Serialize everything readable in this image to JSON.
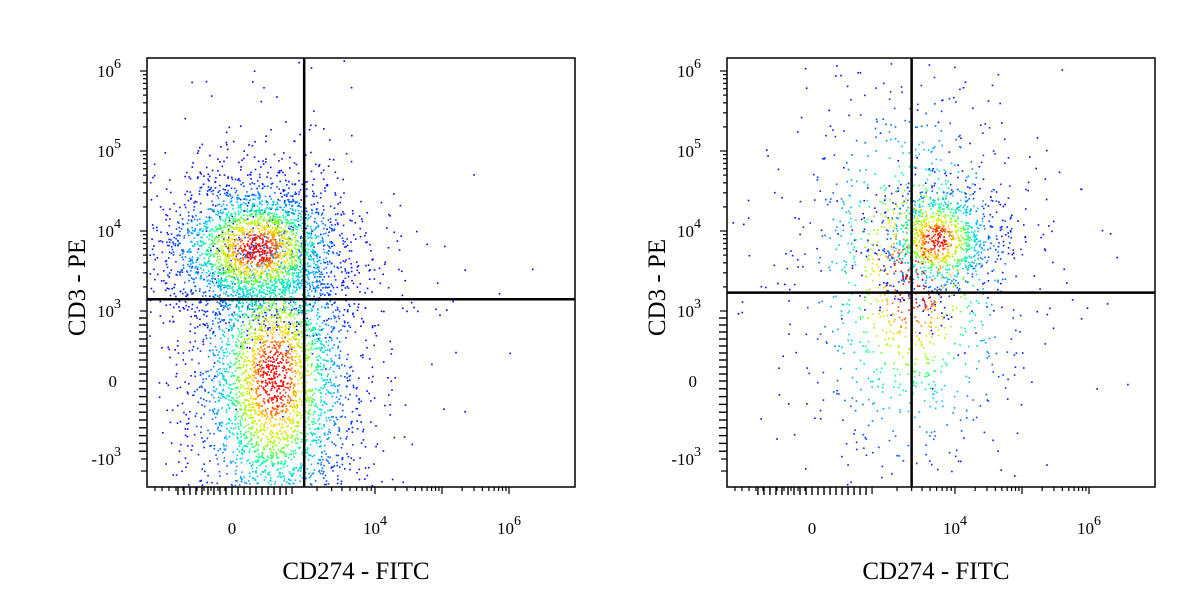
{
  "chart_data": [
    {
      "type": "scatter",
      "plot_style": "flow-cytometry-density-dot-plot",
      "title": "",
      "xlabel": "CD274 - FITC",
      "ylabel": "CD3 - PE",
      "x_scale": "biexponential",
      "y_scale": "biexponential",
      "xlim": [
        -1500,
        1000000
      ],
      "ylim": [
        -1800,
        1500000
      ],
      "x_ticks": [
        {
          "value": 0,
          "label": "0"
        },
        {
          "value": 10000,
          "label": "10",
          "exp": "4"
        },
        {
          "value": 1000000,
          "label": "10",
          "exp": "6"
        }
      ],
      "y_ticks": [
        {
          "value": 1000000,
          "label": "10",
          "exp": "6"
        },
        {
          "value": 100000,
          "label": "10",
          "exp": "5"
        },
        {
          "value": 10000,
          "label": "10",
          "exp": "4"
        },
        {
          "value": 1000,
          "label": "10",
          "exp": "3"
        },
        {
          "value": 0,
          "label": "0"
        },
        {
          "value": -1000,
          "label": "-10",
          "exp": "3"
        }
      ],
      "quadrant_gate": {
        "x": 1400,
        "y": 1400
      },
      "density_colormap": [
        "#0000ff",
        "#00b7ff",
        "#00ff9f",
        "#9fff00",
        "#ffd400",
        "#ff0000"
      ],
      "clusters": [
        {
          "x_center": 400,
          "y_center": 6000,
          "x_spread": 0.45,
          "y_spread": 0.22,
          "n_points": 2600
        },
        {
          "x_center": 700,
          "y_center": 60,
          "x_spread": 0.4,
          "y_spread": 0.5,
          "n_points": 3600
        }
      ]
    },
    {
      "type": "scatter",
      "plot_style": "flow-cytometry-density-dot-plot",
      "title": "",
      "xlabel": "CD274 - FITC",
      "ylabel": "CD3 - PE",
      "x_scale": "biexponential",
      "y_scale": "biexponential",
      "xlim": [
        -1500,
        1000000
      ],
      "ylim": [
        -1800,
        1500000
      ],
      "x_ticks": [
        {
          "value": 0,
          "label": "0"
        },
        {
          "value": 10000,
          "label": "10",
          "exp": "4"
        },
        {
          "value": 1000000,
          "label": "10",
          "exp": "6"
        }
      ],
      "y_ticks": [
        {
          "value": 1000000,
          "label": "10",
          "exp": "6"
        },
        {
          "value": 100000,
          "label": "10",
          "exp": "5"
        },
        {
          "value": 10000,
          "label": "10",
          "exp": "4"
        },
        {
          "value": 1000,
          "label": "10",
          "exp": "3"
        },
        {
          "value": 0,
          "label": "0"
        },
        {
          "value": -1000,
          "label": "-10",
          "exp": "3"
        }
      ],
      "quadrant_gate": {
        "x": 3000,
        "y": 1700
      },
      "density_colormap": [
        "#0000ff",
        "#00b7ff",
        "#00ff9f",
        "#9fff00",
        "#ffd400",
        "#ff0000"
      ],
      "clusters": [
        {
          "x_center": 6000,
          "y_center": 8000,
          "x_spread": 0.3,
          "y_spread": 0.18,
          "n_points": 1100
        },
        {
          "x_center": 3000,
          "y_center": 2500,
          "x_spread": 0.55,
          "y_spread": 0.6,
          "n_points": 1200
        }
      ]
    }
  ]
}
